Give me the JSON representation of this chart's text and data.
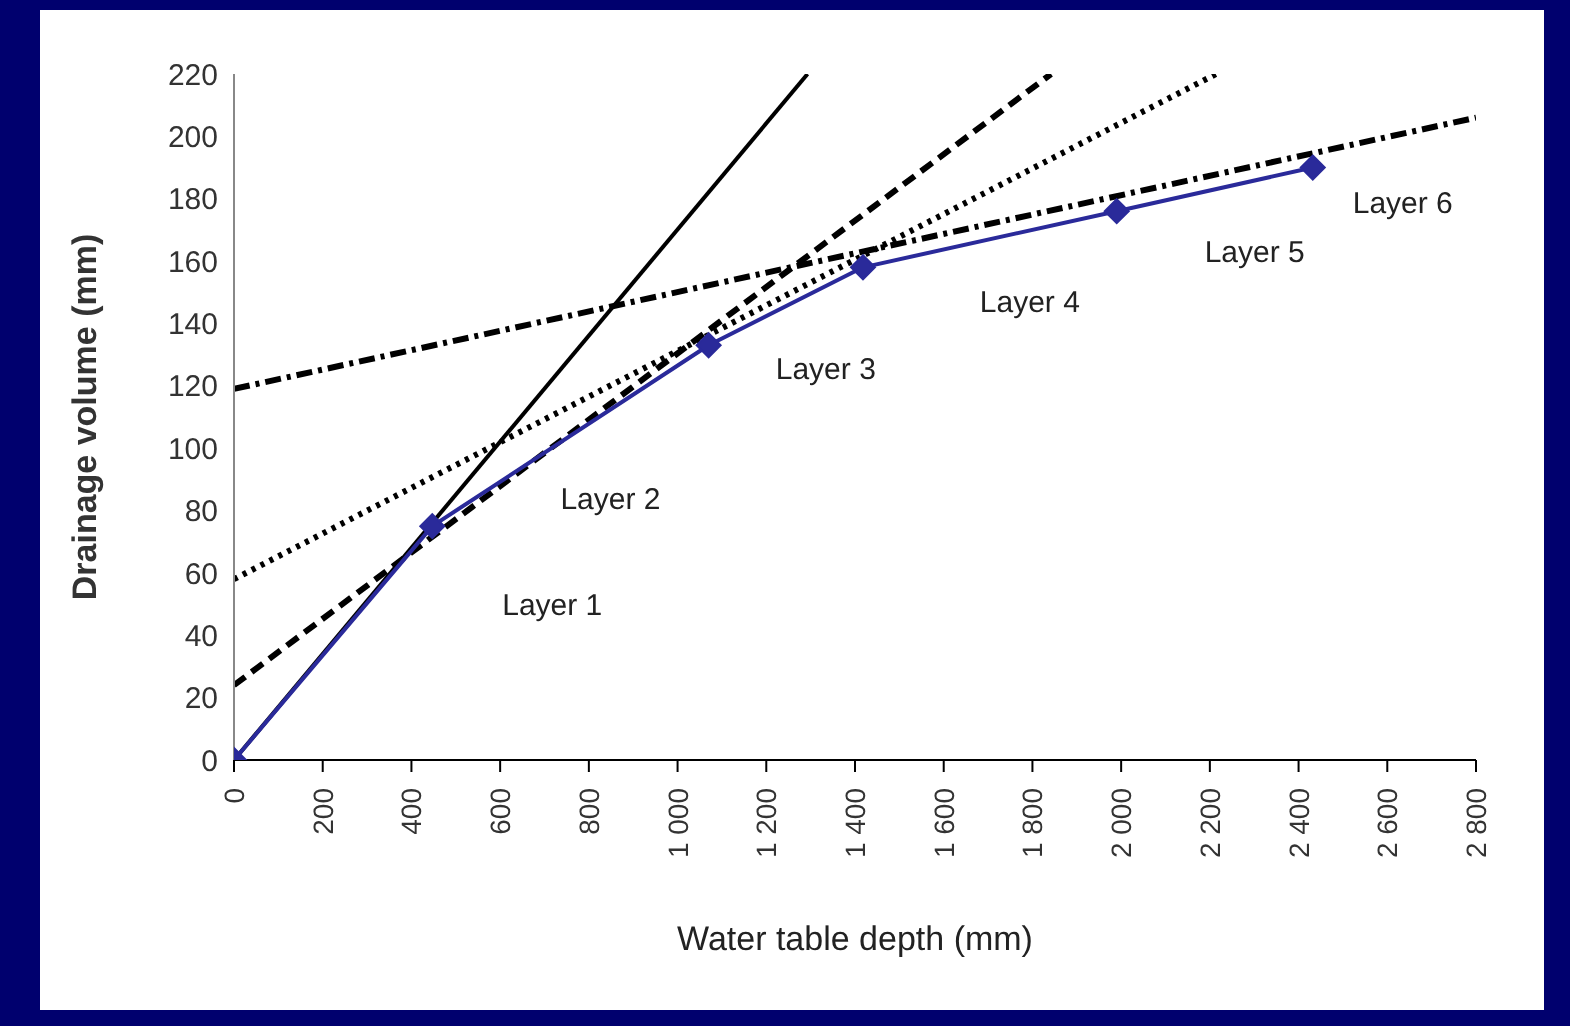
{
  "chart_data": {
    "type": "line",
    "xlabel": "Water table depth (mm)",
    "ylabel": "Drainage volume (mm)",
    "xlim": [
      0,
      2800
    ],
    "xticks": [
      0,
      200,
      400,
      600,
      800,
      {
        "value": 1000,
        "label": "1 000"
      },
      {
        "value": 1200,
        "label": "1 200"
      },
      {
        "value": 1400,
        "label": "1 400"
      },
      {
        "value": 1600,
        "label": "1 600"
      },
      {
        "value": 1800,
        "label": "1 800"
      },
      {
        "value": 2000,
        "label": "2 000"
      },
      {
        "value": 2200,
        "label": "2 200"
      },
      {
        "value": 2400,
        "label": "2 400"
      },
      {
        "value": 2600,
        "label": "2 600"
      },
      {
        "value": 2800,
        "label": "2 800"
      }
    ],
    "ylim": [
      0,
      220
    ],
    "yticks": [
      0,
      20,
      40,
      60,
      80,
      100,
      120,
      140,
      160,
      180,
      200,
      220
    ],
    "grid": false,
    "series": [
      {
        "color": "#000000",
        "line_style": "solid",
        "marker": "none",
        "x": [
          0,
          1293
        ],
        "values": [
          0,
          220
        ]
      },
      {
        "color": "#000000",
        "line_style": "dashed",
        "marker": "none",
        "x": [
          0,
          1842
        ],
        "values": [
          24,
          220
        ]
      },
      {
        "color": "#000000",
        "line_style": "dotted",
        "marker": "none",
        "x": [
          0,
          2214
        ],
        "values": [
          58,
          220
        ]
      },
      {
        "color": "#000000",
        "line_style": "dashdot",
        "marker": "none",
        "x": [
          0,
          2800
        ],
        "values": [
          119,
          206
        ]
      },
      {
        "color": "#2a2a9a",
        "line_style": "solid",
        "marker": "diamond",
        "x": [
          0,
          447,
          1070,
          1418,
          1990,
          2432
        ],
        "values": [
          0,
          75,
          133,
          158,
          176,
          190
        ]
      }
    ],
    "annotations": [
      "Layer 1",
      "Layer 2",
      "Layer 3",
      "Layer 4",
      "Layer 5",
      "Layer 6"
    ]
  }
}
